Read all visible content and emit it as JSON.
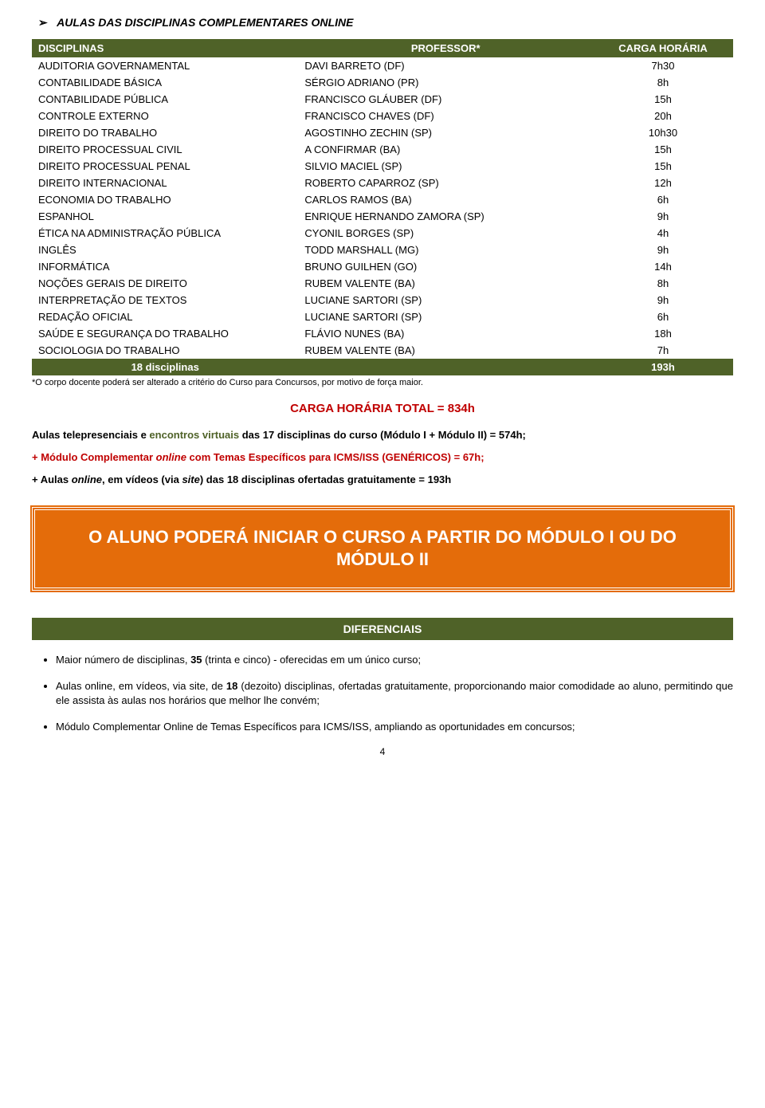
{
  "section_title": {
    "arrow": "➢",
    "main": "AULAS DAS DISCIPLINAS COMPLEMENTARES",
    "online": "ONLINE"
  },
  "table": {
    "headers": [
      "DISCIPLINAS",
      "PROFESSOR*",
      "CARGA HORÁRIA"
    ],
    "rows": [
      [
        "AUDITORIA GOVERNAMENTAL",
        "DAVI BARRETO (DF)",
        "7h30"
      ],
      [
        "CONTABILIDADE BÁSICA",
        "SÉRGIO ADRIANO (PR)",
        "8h"
      ],
      [
        "CONTABILIDADE PÚBLICA",
        "FRANCISCO GLÁUBER (DF)",
        "15h"
      ],
      [
        "CONTROLE EXTERNO",
        "FRANCISCO CHAVES (DF)",
        "20h"
      ],
      [
        "DIREITO DO TRABALHO",
        "AGOSTINHO ZECHIN (SP)",
        "10h30"
      ],
      [
        "DIREITO PROCESSUAL CIVIL",
        "A CONFIRMAR (BA)",
        "15h"
      ],
      [
        "DIREITO PROCESSUAL PENAL",
        "SILVIO MACIEL (SP)",
        "15h"
      ],
      [
        "DIREITO INTERNACIONAL",
        "ROBERTO CAPARROZ (SP)",
        "12h"
      ],
      [
        "ECONOMIA DO TRABALHO",
        "CARLOS RAMOS (BA)",
        "6h"
      ],
      [
        "ESPANHOL",
        "ENRIQUE HERNANDO ZAMORA (SP)",
        "9h"
      ],
      [
        "ÉTICA NA ADMINISTRAÇÃO PÚBLICA",
        "CYONIL BORGES (SP)",
        "4h"
      ],
      [
        "INGLÊS",
        "TODD MARSHALL (MG)",
        "9h"
      ],
      [
        "INFORMÁTICA",
        "BRUNO GUILHEN (GO)",
        "14h"
      ],
      [
        "NOÇÕES GERAIS DE DIREITO",
        "RUBEM VALENTE (BA)",
        "8h"
      ],
      [
        "INTERPRETAÇÃO DE TEXTOS",
        "LUCIANE SARTORI (SP)",
        "9h"
      ],
      [
        "REDAÇÃO OFICIAL",
        "LUCIANE SARTORI (SP)",
        "6h"
      ],
      [
        "SAÚDE E SEGURANÇA DO TRABALHO",
        "FLÁVIO NUNES (BA)",
        "18h"
      ],
      [
        "SOCIOLOGIA DO TRABALHO",
        "RUBEM VALENTE (BA)",
        "7h"
      ]
    ],
    "total": [
      "18 disciplinas",
      "",
      "193h"
    ]
  },
  "footnote": "*O corpo docente poderá ser alterado a critério do Curso para Concursos, por motivo de força maior.",
  "carga_total": "CARGA HORÁRIA TOTAL = 834h",
  "para1": {
    "prefix": "   Aulas telepresenciais e ",
    "green": "encontros virtuais",
    "suffix": " das 17 disciplinas do curso (Módulo I + Módulo II) = 574h;"
  },
  "para2": {
    "prefix": "+ Módulo Complementar ",
    "italic": "online",
    "suffix": " com Temas Específicos para ICMS/ISS (GENÉRICOS) = 67h;"
  },
  "para3": {
    "prefix": "+ Aulas ",
    "italic1": "online",
    "mid": ", em vídeos (via ",
    "italic2": "site",
    "suffix": ") das 18 disciplinas ofertadas gratuitamente = 193h"
  },
  "orange_box": "O ALUNO PODERÁ INICIAR O CURSO A PARTIR DO MÓDULO I OU DO MÓDULO II",
  "diff_header": "DIFERENCIAIS",
  "bullets": [
    {
      "pre": "Maior número de disciplinas, ",
      "bold": "35",
      "post": " (trinta e cinco) - oferecidas em um único curso;"
    },
    {
      "pre": "Aulas online, em vídeos, via site, de ",
      "bold": "18",
      "post": " (dezoito) disciplinas, ofertadas gratuitamente, proporcionando maior comodidade ao aluno, permitindo que ele assista às aulas nos horários que melhor lhe convém;"
    },
    {
      "pre": "Módulo Complementar Online de Temas Específicos para ICMS/ISS, ampliando as oportunidades em concursos;",
      "bold": "",
      "post": ""
    }
  ],
  "page_num": "4",
  "colors": {
    "header_bg": "#4f6228",
    "header_text": "#ffffff",
    "red": "#c00000",
    "orange": "#e46c0a"
  }
}
